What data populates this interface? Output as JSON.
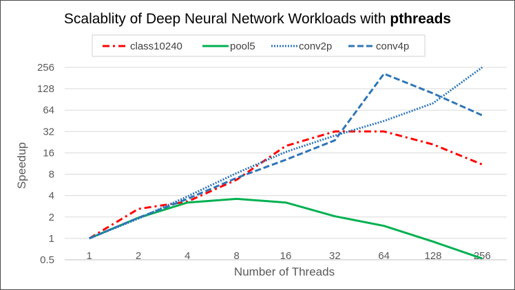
{
  "chart_data": {
    "type": "line",
    "title_prefix": "Scalablity of Deep Neural Network Workloads with ",
    "title_bold": "pthreads",
    "xlabel": "Number of Threads",
    "ylabel": "Speedup",
    "y_scale": "log2",
    "ylim": [
      0.5,
      256
    ],
    "y_ticks": [
      {
        "value": 0.5,
        "label": "0.5"
      },
      {
        "value": 1,
        "label": "1"
      },
      {
        "value": 2,
        "label": "2"
      },
      {
        "value": 4,
        "label": "4"
      },
      {
        "value": 8,
        "label": "8"
      },
      {
        "value": 16,
        "label": "16"
      },
      {
        "value": 32,
        "label": "32"
      },
      {
        "value": 64,
        "label": "64"
      },
      {
        "value": 128,
        "label": "128"
      },
      {
        "value": 256,
        "label": "256"
      }
    ],
    "categories": [
      "1",
      "2",
      "4",
      "8",
      "16",
      "32",
      "64",
      "128",
      "256"
    ],
    "grid": true,
    "legend_position": "top",
    "series": [
      {
        "name": "class10240",
        "color": "#ff0000",
        "style": "dash-dot",
        "values": [
          1,
          2.6,
          3.3,
          6.7,
          20,
          32,
          32,
          21,
          11
        ]
      },
      {
        "name": "pool5",
        "color": "#00b050",
        "style": "solid",
        "values": [
          1,
          1.95,
          3.2,
          3.6,
          3.2,
          2.05,
          1.5,
          0.9,
          0.52
        ]
      },
      {
        "name": "conv2p",
        "color": "#2e75b6",
        "style": "dotted",
        "values": [
          1,
          1.9,
          3.9,
          8.3,
          16.5,
          28,
          45,
          80,
          256
        ]
      },
      {
        "name": "conv4p",
        "color": "#2e75b6",
        "style": "dashed",
        "values": [
          1,
          1.95,
          3.6,
          7.1,
          12.8,
          24,
          208,
          110,
          54
        ]
      }
    ]
  }
}
